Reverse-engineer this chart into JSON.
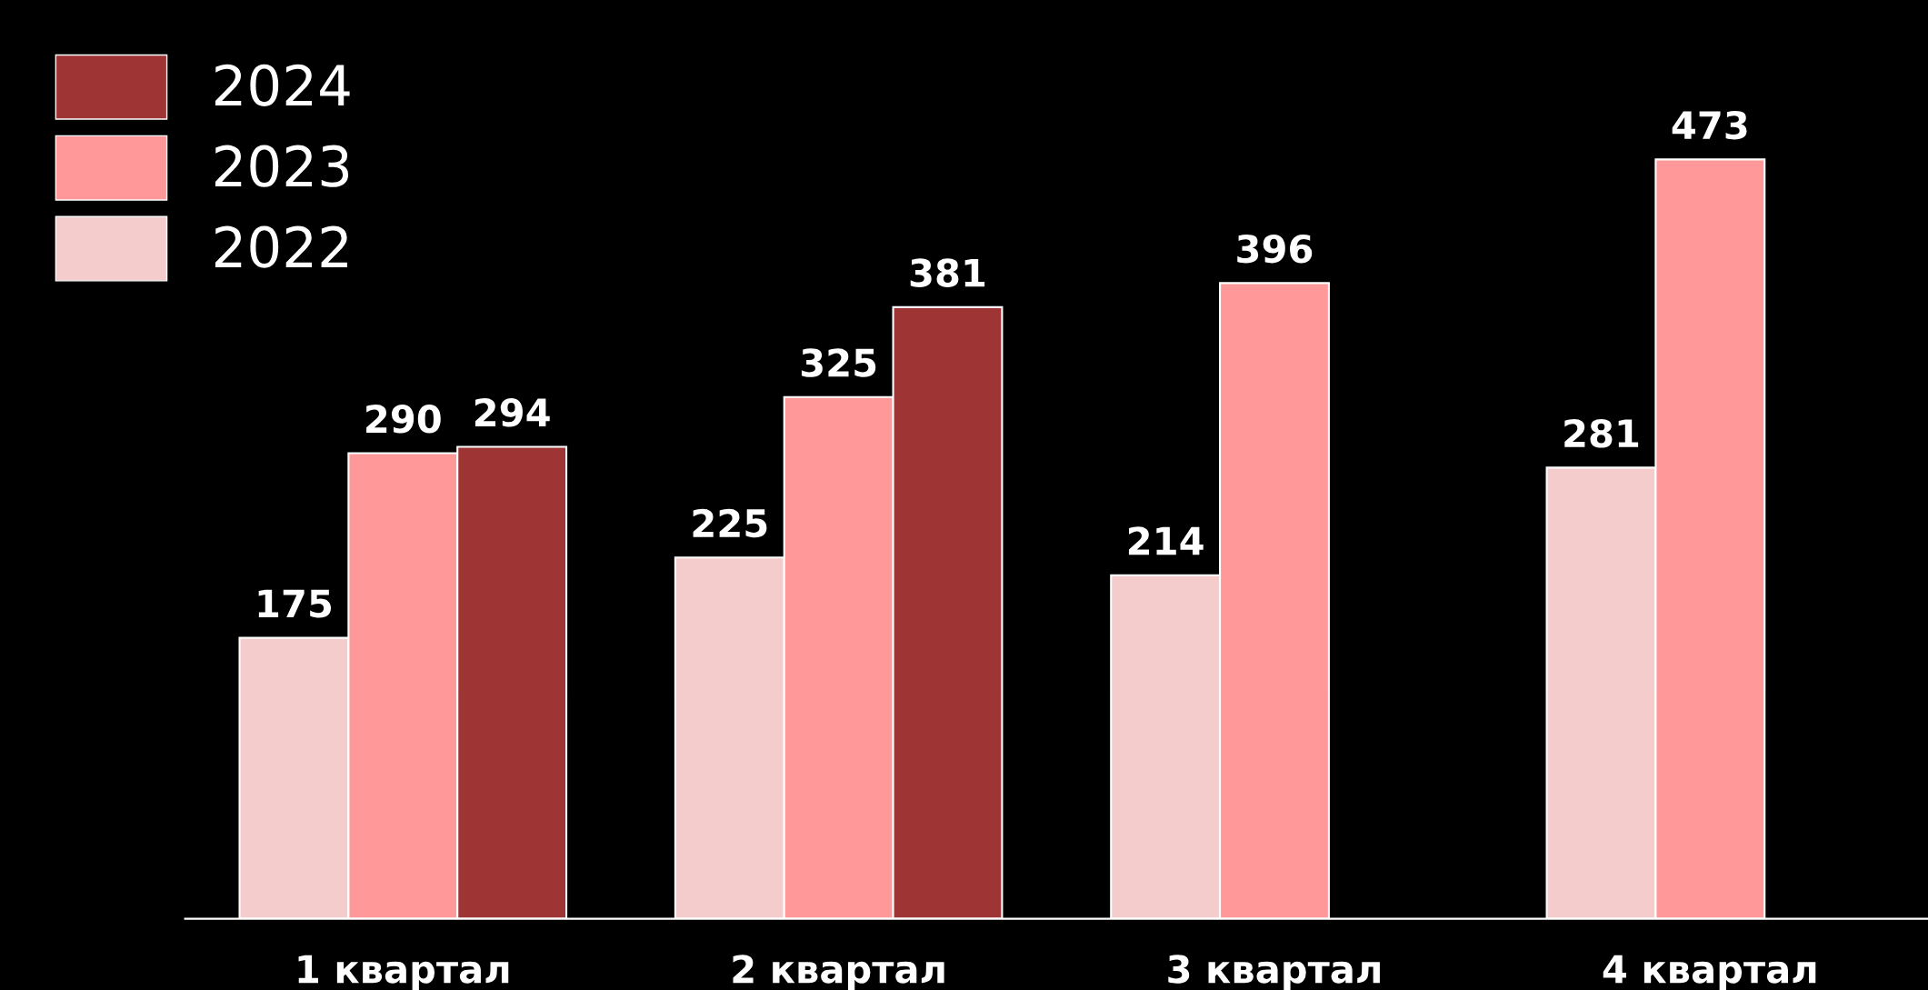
{
  "chart_data": {
    "type": "bar",
    "categories": [
      "1 квартал",
      "2 квартал",
      "3 квартал",
      "4 квартал"
    ],
    "series": [
      {
        "name": "2022",
        "color": "#f4cccc",
        "values": [
          175,
          225,
          214,
          281
        ]
      },
      {
        "name": "2023",
        "color": "#ff9999",
        "values": [
          290,
          325,
          396,
          473
        ]
      },
      {
        "name": "2024",
        "color": "#9e3434",
        "values": [
          294,
          381,
          null,
          null
        ]
      }
    ],
    "data_labels": true,
    "legend": "top left",
    "grid": false
  }
}
